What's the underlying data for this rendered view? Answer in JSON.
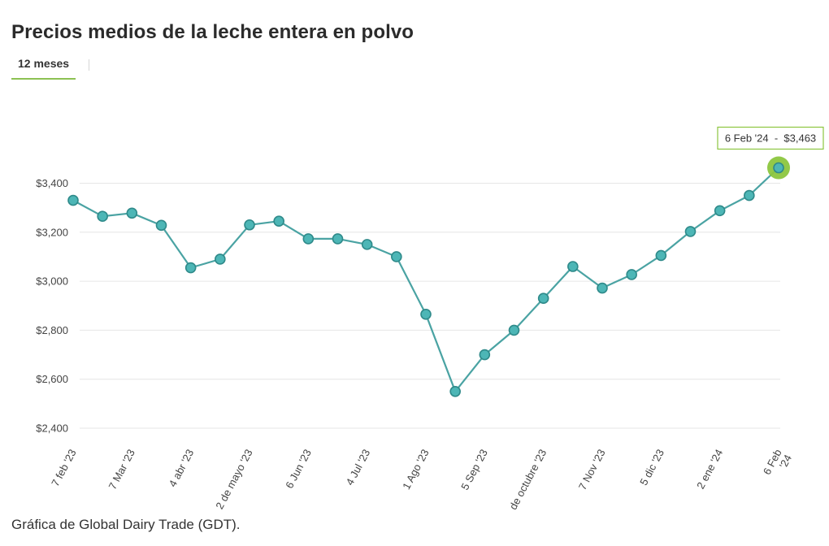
{
  "title": "Precios medios de la leche entera en polvo",
  "tabs": [
    {
      "label": "12 meses",
      "active": true
    }
  ],
  "footnote": "Gráfica de Global Dairy Trade (GDT).",
  "tooltip": {
    "text": "6 Feb '24  -  $3,463"
  },
  "colors": {
    "line": "#4aa3a3",
    "point_fill": "#4db6b6",
    "point_stroke": "#2f8a8a",
    "highlight": "#8cc63f",
    "tab_underline": "#8cc152",
    "grid": "#e6e6e6"
  },
  "chart_data": {
    "type": "line",
    "title": "Precios medios de la leche entera en polvo",
    "xlabel": "",
    "ylabel": "",
    "ylim": [
      2400,
      3500
    ],
    "yticks": [
      2400,
      2600,
      2800,
      3000,
      3200,
      3400
    ],
    "ytick_labels": [
      "$2,400",
      "$2,600",
      "$2,800",
      "$3,000",
      "$3,200",
      "$3,400"
    ],
    "grid": true,
    "legend": "none",
    "x_labels": [
      {
        "label": "7 feb '23",
        "index": 0
      },
      {
        "label": "7 Mar '23",
        "index": 2
      },
      {
        "label": "4 abr '23",
        "index": 4
      },
      {
        "label": "2 de mayo '23",
        "index": 6
      },
      {
        "label": "6 Jun '23",
        "index": 8
      },
      {
        "label": "4 Jul '23",
        "index": 10
      },
      {
        "label": "1 Ago '23",
        "index": 12
      },
      {
        "label": "5 Sep '23",
        "index": 14
      },
      {
        "label": "de octubre '23",
        "index": 16
      },
      {
        "label": "7 Nov '23",
        "index": 18
      },
      {
        "label": "5 dic '23",
        "index": 20
      },
      {
        "label": "2 ene '24",
        "index": 22
      },
      {
        "label": "6 Feb '24",
        "index": 24
      }
    ],
    "series": [
      {
        "values": [
          3330,
          3265,
          3278,
          3228,
          3055,
          3090,
          3230,
          3245,
          3173,
          3173,
          3150,
          3100,
          2865,
          2550,
          2700,
          2800,
          2930,
          3060,
          2972,
          3027,
          3105,
          3203,
          3288,
          3350,
          3463
        ]
      }
    ],
    "highlight_index": 24
  }
}
